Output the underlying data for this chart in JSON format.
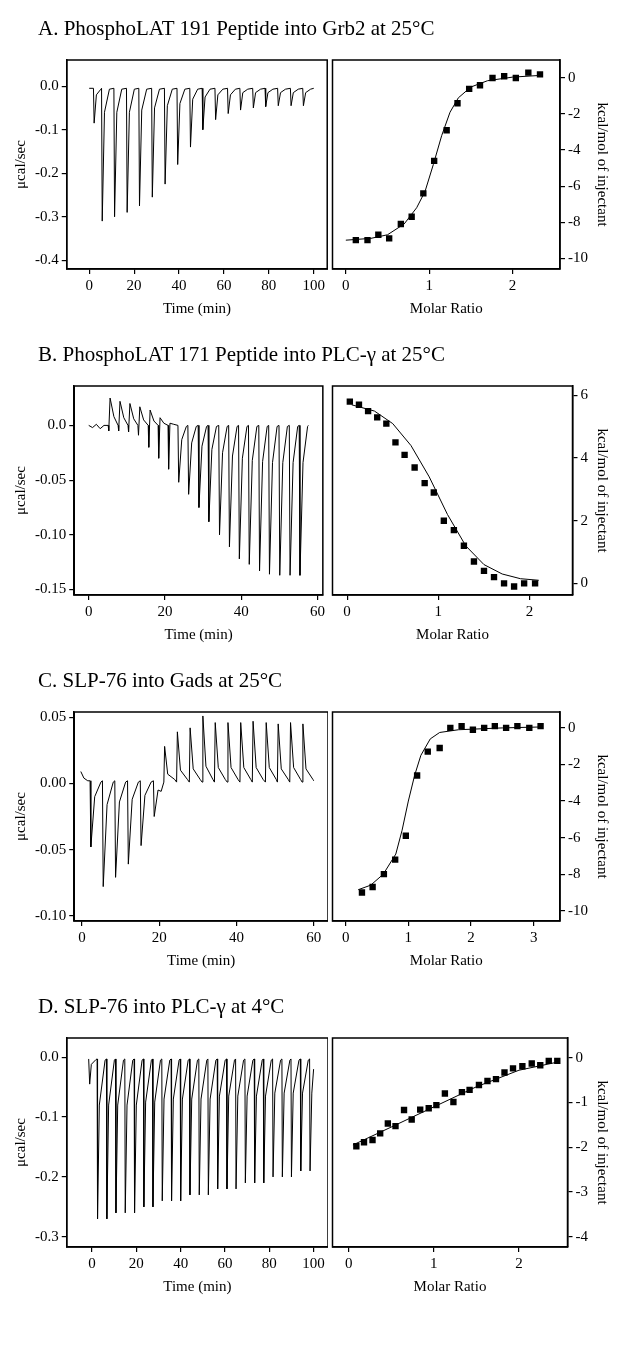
{
  "chart_data": [
    {
      "type": "line",
      "title": "A. PhosphoLAT 191 Peptide into Grb2 at 25°C",
      "xlabel": "Time (min)",
      "ylabel": "μcal/sec",
      "color": "#000000",
      "x": [
        0,
        1.9,
        2.2,
        3.2,
        5.2,
        5.5,
        5.8,
        6.8,
        9.0,
        11.0,
        11.3,
        12.3,
        14.5,
        16.6,
        16.9,
        17.9,
        20.1,
        22.1,
        22.4,
        23.4,
        25.6,
        27.8,
        28.1,
        29.1,
        31.3,
        33.5,
        33.8,
        34.8,
        37.0,
        39.1,
        39.4,
        40.4,
        42.6,
        44.8,
        45.1,
        46.1,
        48.3,
        50.3,
        50.6,
        51.6,
        53.8,
        56.0,
        56.3,
        57.3,
        59.5,
        61.6,
        61.9,
        62.9,
        65.1,
        67.1,
        67.4,
        68.4,
        70.6,
        72.8,
        73.1,
        74.1,
        76.3,
        78.3,
        78.6,
        79.6,
        81.8,
        83.9,
        84.2,
        85.2,
        87.4,
        89.6,
        89.9,
        90.9,
        93.1,
        95.1,
        95.4,
        96.4,
        98.6,
        100
      ],
      "values": [
        -0.005,
        -0.005,
        -0.085,
        -0.02,
        -0.007,
        -0.005,
        -0.31,
        -0.06,
        -0.007,
        -0.005,
        -0.3,
        -0.06,
        -0.007,
        -0.005,
        -0.29,
        -0.06,
        -0.007,
        -0.005,
        -0.275,
        -0.055,
        -0.007,
        -0.005,
        -0.255,
        -0.05,
        -0.007,
        -0.005,
        -0.225,
        -0.045,
        -0.007,
        -0.005,
        -0.18,
        -0.04,
        -0.007,
        -0.005,
        -0.14,
        -0.03,
        -0.007,
        -0.005,
        -0.1,
        -0.025,
        -0.007,
        -0.005,
        -0.077,
        -0.02,
        -0.007,
        -0.005,
        -0.063,
        -0.02,
        -0.007,
        -0.005,
        -0.055,
        -0.015,
        -0.007,
        -0.005,
        -0.05,
        -0.015,
        -0.007,
        -0.005,
        -0.047,
        -0.015,
        -0.007,
        -0.005,
        -0.045,
        -0.015,
        -0.007,
        -0.005,
        -0.045,
        -0.015,
        -0.007,
        -0.005,
        -0.045,
        -0.015,
        -0.007,
        -0.005
      ],
      "xlim": [
        -10,
        106
      ],
      "xticks": [
        0,
        20,
        40,
        60,
        80,
        100
      ],
      "ylim": [
        -0.42,
        0.06
      ],
      "yticks": [
        {
          "value": 0,
          "label": "0.0"
        },
        {
          "value": -0.1,
          "label": "-0.1"
        },
        {
          "value": -0.2,
          "label": "-0.2"
        },
        {
          "value": -0.3,
          "label": "-0.3"
        },
        {
          "value": -0.4,
          "label": "-0.4"
        }
      ]
    },
    {
      "type": "scatter",
      "xlabel": "Molar Ratio",
      "y2label": "kcal/mol of injectant",
      "xlim": [
        -0.16,
        2.57
      ],
      "xticks": [
        0,
        1,
        2
      ],
      "y2lim": [
        -10.6,
        1.0
      ],
      "y2ticks": [
        0,
        -2,
        -4,
        -6,
        -8,
        -10
      ],
      "series": [
        {
          "axis": "y2",
          "marker": "square",
          "color": "#000000",
          "x": [
            0.12,
            0.26,
            0.39,
            0.52,
            0.66,
            0.79,
            0.93,
            1.06,
            1.21,
            1.34,
            1.48,
            1.61,
            1.76,
            1.9,
            2.04,
            2.19,
            2.33
          ],
          "values": [
            -9.0,
            -9.0,
            -8.7,
            -8.9,
            -8.1,
            -7.7,
            -6.4,
            -4.6,
            -2.9,
            -1.4,
            -0.6,
            -0.4,
            0.0,
            0.1,
            0.0,
            0.3,
            0.2
          ]
        },
        {
          "type": "line",
          "axis": "y2",
          "color": "#000000",
          "x": [
            0,
            0.3,
            0.5,
            0.7,
            0.85,
            0.95,
            1.05,
            1.15,
            1.25,
            1.35,
            1.5,
            1.7,
            2.0,
            2.35
          ],
          "values": [
            -9.0,
            -8.9,
            -8.7,
            -8.1,
            -7.2,
            -6.3,
            -4.8,
            -3.2,
            -1.9,
            -1.1,
            -0.5,
            -0.15,
            0.05,
            0.15
          ]
        }
      ]
    },
    {
      "type": "line",
      "title": "B. PhosphoLAT 171 Peptide into PLC-γ at 25°C",
      "xlabel": "Time (min)",
      "ylabel": "μcal/sec",
      "color": "#000000",
      "x": [
        0,
        1,
        2,
        3,
        4,
        5.1,
        5.25,
        5.6,
        6.6,
        7.7,
        7.85,
        8.2,
        9.2,
        10.3,
        10.45,
        10.8,
        11.8,
        12.9,
        13.05,
        13.4,
        14.4,
        15.6,
        15.75,
        16.1,
        17.1,
        18.2,
        18.35,
        18.7,
        19.7,
        20.8,
        20.95,
        21.3,
        22.3,
        23.4,
        23.6,
        24.4,
        25.6,
        26.0,
        26.2,
        27.0,
        28.2,
        28.7,
        28.9,
        29.7,
        30.9,
        31.3,
        31.5,
        32.3,
        33.5,
        34.1,
        34.3,
        35.1,
        36.3,
        36.7,
        36.9,
        37.7,
        38.9,
        39.3,
        39.5,
        40.3,
        41.5,
        41.9,
        42.1,
        42.9,
        44.1,
        44.6,
        44.8,
        45.6,
        46.8,
        47.2,
        47.4,
        48.2,
        49.4,
        49.9,
        50.1,
        50.9,
        52.1,
        52.6,
        52.8,
        53.6,
        54.8,
        55.2,
        55.4,
        56.2,
        57.4,
        57.6
      ],
      "values": [
        0,
        -0.002,
        0.001,
        -0.003,
        0,
        0,
        -0.005,
        0.025,
        0.008,
        0,
        -0.005,
        0.022,
        0.007,
        0,
        -0.006,
        0.02,
        0.006,
        0,
        -0.009,
        0.017,
        0.005,
        0,
        -0.02,
        0.014,
        0.004,
        0,
        -0.03,
        0.007,
        0.002,
        0,
        -0.04,
        0.002,
        0.001,
        0,
        -0.052,
        -0.013,
        -0.001,
        0,
        -0.063,
        -0.016,
        -0.001,
        0,
        -0.075,
        -0.019,
        -0.001,
        0,
        -0.088,
        -0.022,
        -0.001,
        0,
        -0.1,
        -0.025,
        -0.001,
        0,
        -0.111,
        -0.028,
        -0.001,
        0,
        -0.122,
        -0.03,
        -0.001,
        0,
        -0.127,
        -0.032,
        -0.001,
        0,
        -0.133,
        -0.033,
        -0.001,
        0,
        -0.136,
        -0.034,
        -0.001,
        0,
        -0.137,
        -0.034,
        -0.001,
        0,
        -0.137,
        -0.034,
        -0.001,
        0,
        -0.137,
        -0.034,
        -0.001,
        0
      ],
      "xlim": [
        -3.8,
        61.4
      ],
      "xticks": [
        0,
        20,
        40,
        60
      ],
      "ylim": [
        -0.155,
        0.036
      ],
      "yticks": [
        {
          "value": 0,
          "label": "0.0"
        },
        {
          "value": -0.05,
          "label": "-0.05"
        },
        {
          "value": -0.1,
          "label": "-0.10"
        },
        {
          "value": -0.15,
          "label": "-0.15"
        }
      ]
    },
    {
      "type": "scatter",
      "xlabel": "Molar Ratio",
      "y2label": "kcal/mol of injectant",
      "xlim": [
        -0.16,
        2.47
      ],
      "xticks": [
        0,
        1,
        2
      ],
      "y2lim": [
        -0.37,
        6.3
      ],
      "y2ticks": [
        0,
        2,
        4,
        6
      ],
      "series": [
        {
          "axis": "y2",
          "marker": "square",
          "color": "#000000",
          "x": [
            0.03,
            0.13,
            0.23,
            0.33,
            0.43,
            0.53,
            0.63,
            0.74,
            0.85,
            0.95,
            1.06,
            1.17,
            1.28,
            1.39,
            1.5,
            1.61,
            1.72,
            1.83,
            1.94,
            2.06
          ],
          "values": [
            5.8,
            5.7,
            5.5,
            5.3,
            5.1,
            4.5,
            4.1,
            3.7,
            3.2,
            2.9,
            2.0,
            1.7,
            1.2,
            0.7,
            0.4,
            0.2,
            0.0,
            -0.1,
            0.0,
            0.0
          ]
        },
        {
          "type": "line",
          "axis": "y2",
          "color": "#000000",
          "x": [
            0.05,
            0.3,
            0.5,
            0.7,
            0.9,
            1.1,
            1.3,
            1.5,
            1.7,
            1.9,
            2.1
          ],
          "values": [
            5.7,
            5.5,
            5.1,
            4.4,
            3.4,
            2.2,
            1.2,
            0.6,
            0.3,
            0.15,
            0.1
          ]
        }
      ]
    },
    {
      "type": "line",
      "title": "C. SLP-76 into Gads at 25°C",
      "xlabel": "Time (min)",
      "ylabel": "μcal/sec",
      "color": "#000000",
      "x": [
        -0.3,
        0.5,
        1.5,
        2.1,
        2.3,
        3.3,
        4.9,
        5.3,
        5.5,
        6.5,
        8.1,
        8.5,
        8.7,
        9.7,
        11.3,
        11.8,
        12.0,
        13.0,
        14.6,
        15.1,
        15.3,
        16.3,
        17.9,
        18.5,
        18.7,
        19.7,
        20.5,
        21.2,
        21.4,
        22.2,
        24.0,
        24.5,
        24.7,
        25.5,
        27.3,
        27.8,
        28.0,
        28.8,
        30.6,
        31.1,
        31.3,
        32.1,
        33.9,
        34.3,
        34.5,
        35.3,
        37.1,
        37.6,
        37.8,
        38.6,
        40.4,
        40.9,
        41.1,
        41.9,
        43.7,
        44.1,
        44.3,
        45.1,
        46.9,
        47.5,
        47.7,
        48.5,
        50.3,
        50.6,
        50.8,
        51.6,
        53.4,
        53.8,
        54.0,
        54.8,
        56.6,
        57.0,
        57.2,
        58.0,
        59.8,
        60
      ],
      "values": [
        0.009,
        0.004,
        0.002,
        0.002,
        -0.048,
        -0.01,
        0.001,
        0.002,
        -0.078,
        -0.016,
        0.001,
        0.002,
        -0.071,
        -0.014,
        0.001,
        0.002,
        -0.061,
        -0.012,
        0.001,
        0.002,
        -0.047,
        -0.009,
        0.001,
        0.002,
        -0.025,
        -0.005,
        -0.006,
        0.001,
        0.028,
        0.007,
        0.003,
        0.001,
        0.039,
        0.01,
        0.003,
        0.001,
        0.042,
        0.011,
        0.003,
        0.001,
        0.051,
        0.013,
        0.003,
        0.001,
        0.046,
        0.012,
        0.003,
        0.001,
        0.046,
        0.012,
        0.003,
        0.001,
        0.046,
        0.012,
        0.003,
        0.001,
        0.047,
        0.012,
        0.003,
        0.001,
        0.046,
        0.012,
        0.003,
        0.001,
        0.045,
        0.011,
        0.003,
        0.001,
        0.046,
        0.012,
        0.003,
        0.001,
        0.045,
        0.011,
        0.003,
        0.002
      ],
      "xlim": [
        -2,
        63.7
      ],
      "xticks": [
        0,
        20,
        40,
        60
      ],
      "ylim": [
        -0.104,
        0.054
      ],
      "yticks": [
        {
          "value": 0.05,
          "label": "0.05"
        },
        {
          "value": 0,
          "label": "0.00"
        },
        {
          "value": -0.05,
          "label": "-0.05"
        },
        {
          "value": -0.1,
          "label": "-0.10"
        }
      ]
    },
    {
      "type": "scatter",
      "xlabel": "Molar Ratio",
      "y2label": "kcal/mol of injectant",
      "xlim": [
        -0.21,
        3.42
      ],
      "xticks": [
        0,
        1,
        2,
        3
      ],
      "y2lim": [
        -10.56,
        0.87
      ],
      "y2ticks": [
        0,
        -2,
        -4,
        -6,
        -8,
        -10
      ],
      "series": [
        {
          "axis": "y2",
          "marker": "square",
          "color": "#000000",
          "x": [
            0.26,
            0.43,
            0.61,
            0.79,
            0.96,
            1.14,
            1.31,
            1.5,
            1.67,
            1.85,
            2.03,
            2.21,
            2.38,
            2.56,
            2.74,
            2.93,
            3.11
          ],
          "values": [
            -9.0,
            -8.7,
            -8.0,
            -7.2,
            -5.9,
            -2.6,
            -1.3,
            -1.1,
            0.0,
            0.1,
            -0.1,
            0.0,
            0.1,
            0.0,
            0.1,
            0.0,
            0.1
          ]
        },
        {
          "type": "line",
          "axis": "y2",
          "color": "#000000",
          "x": [
            0.2,
            0.4,
            0.6,
            0.8,
            0.9,
            1.0,
            1.1,
            1.2,
            1.35,
            1.5,
            1.8,
            2.5,
            3.1
          ],
          "values": [
            -8.85,
            -8.6,
            -8.0,
            -6.9,
            -5.6,
            -4.0,
            -2.6,
            -1.5,
            -0.6,
            -0.25,
            -0.1,
            0.0,
            0.05
          ]
        }
      ]
    },
    {
      "type": "line",
      "title": "D. SLP-76 into PLC-γ at 4°C",
      "xlabel": "Time (min)",
      "ylabel": "μcal/sec",
      "color": "#000000",
      "x": [
        -1.5,
        -1.05,
        -0.3,
        1.8,
        2.3,
        2.5,
        3.3,
        5.9,
        6.5,
        6.7,
        7.5,
        10.1,
        10.6,
        10.8,
        11.6,
        14.2,
        14.8,
        15.0,
        15.8,
        18.4,
        19.0,
        19.2,
        20.0,
        22.6,
        23.2,
        23.4,
        24.2,
        26.8,
        27.3,
        27.5,
        28.3,
        30.9,
        31.5,
        31.7,
        32.5,
        35.1,
        35.7,
        35.9,
        36.7,
        39.3,
        39.8,
        40.0,
        40.8,
        43.4,
        44.0,
        44.2,
        45.0,
        47.6,
        48.2,
        48.4,
        49.2,
        51.8,
        52.3,
        52.5,
        53.3,
        55.9,
        56.5,
        56.7,
        57.5,
        60.1,
        60.7,
        60.9,
        61.7,
        64.3,
        64.8,
        65.0,
        65.8,
        68.4,
        69.0,
        69.2,
        70.0,
        72.6,
        73.2,
        73.4,
        74.2,
        76.8,
        77.3,
        77.5,
        78.3,
        80.9,
        81.5,
        81.7,
        82.5,
        85.1,
        85.7,
        85.9,
        86.7,
        89.3,
        89.8,
        90.0,
        90.8,
        93.4,
        94.0,
        94.2,
        95.0,
        97.6,
        98.2,
        98.4,
        99.2,
        100
      ],
      "values": [
        -0.003,
        -0.045,
        -0.012,
        -0.004,
        -0.003,
        -0.27,
        -0.08,
        -0.005,
        -0.003,
        -0.27,
        -0.08,
        -0.005,
        -0.003,
        -0.26,
        -0.08,
        -0.005,
        -0.003,
        -0.26,
        -0.08,
        -0.005,
        -0.003,
        -0.26,
        -0.08,
        -0.005,
        -0.003,
        -0.25,
        -0.075,
        -0.005,
        -0.003,
        -0.25,
        -0.075,
        -0.005,
        -0.003,
        -0.24,
        -0.07,
        -0.005,
        -0.003,
        -0.24,
        -0.07,
        -0.005,
        -0.003,
        -0.24,
        -0.07,
        -0.005,
        -0.003,
        -0.23,
        -0.07,
        -0.005,
        -0.003,
        -0.23,
        -0.07,
        -0.005,
        -0.003,
        -0.23,
        -0.07,
        -0.005,
        -0.003,
        -0.22,
        -0.065,
        -0.005,
        -0.003,
        -0.22,
        -0.065,
        -0.005,
        -0.003,
        -0.22,
        -0.065,
        -0.005,
        -0.003,
        -0.21,
        -0.065,
        -0.005,
        -0.003,
        -0.21,
        -0.065,
        -0.005,
        -0.003,
        -0.21,
        -0.065,
        -0.005,
        -0.003,
        -0.2,
        -0.06,
        -0.005,
        -0.003,
        -0.2,
        -0.06,
        -0.005,
        -0.003,
        -0.2,
        -0.06,
        -0.005,
        -0.003,
        -0.19,
        -0.06,
        -0.005,
        -0.003,
        -0.19,
        -0.06,
        -0.02
      ],
      "xlim": [
        -11.4,
        106.5
      ],
      "xticks": [
        0,
        20,
        40,
        60,
        80,
        100
      ],
      "ylim": [
        -0.317,
        0.032
      ],
      "yticks": [
        {
          "value": 0,
          "label": "0.0"
        },
        {
          "value": -0.1,
          "label": "-0.1"
        },
        {
          "value": -0.2,
          "label": "-0.2"
        },
        {
          "value": -0.3,
          "label": "-0.3"
        }
      ]
    },
    {
      "type": "scatter",
      "xlabel": "Molar Ratio",
      "y2label": "kcal/mol of injectant",
      "xlim": [
        -0.19,
        2.57
      ],
      "xticks": [
        0,
        1,
        2
      ],
      "y2lim": [
        -4.23,
        0.44
      ],
      "y2ticks": [
        0,
        -1,
        -2,
        -3,
        -4
      ],
      "series": [
        {
          "axis": "y2",
          "marker": "square",
          "color": "#000000",
          "x": [
            0.09,
            0.18,
            0.28,
            0.37,
            0.46,
            0.55,
            0.65,
            0.74,
            0.84,
            0.94,
            1.03,
            1.13,
            1.23,
            1.33,
            1.42,
            1.53,
            1.63,
            1.73,
            1.83,
            1.93,
            2.04,
            2.15,
            2.25,
            2.35,
            2.45
          ],
          "values": [
            -1.98,
            -1.89,
            -1.84,
            -1.69,
            -1.47,
            -1.53,
            -1.17,
            -1.38,
            -1.16,
            -1.13,
            -1.06,
            -0.8,
            -0.99,
            -0.77,
            -0.72,
            -0.61,
            -0.52,
            -0.48,
            -0.33,
            -0.24,
            -0.19,
            -0.13,
            -0.17,
            -0.07,
            -0.07
          ]
        },
        {
          "type": "line",
          "axis": "y2",
          "color": "#000000",
          "x": [
            0.05,
            0.5,
            1.0,
            1.5,
            2.0,
            2.45
          ],
          "values": [
            -1.95,
            -1.55,
            -1.1,
            -0.65,
            -0.28,
            -0.1
          ]
        }
      ]
    }
  ]
}
